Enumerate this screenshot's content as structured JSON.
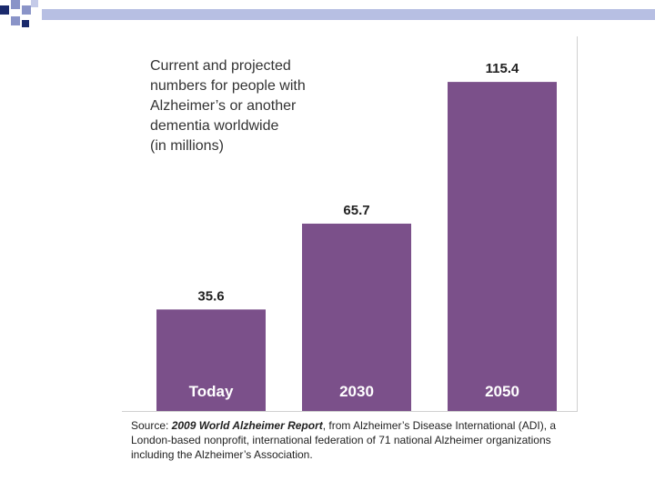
{
  "chart_data": {
    "type": "bar",
    "title": "Current and projected\nnumbers for people with\nAlzheimer’s or another\ndementia worldwide\n(in millions)",
    "categories": [
      "Today",
      "2030",
      "2050"
    ],
    "values": [
      35.6,
      65.7,
      115.4
    ],
    "value_labels": [
      "35.6",
      "65.7",
      "115.4"
    ],
    "ylim": [
      0,
      125
    ],
    "xlabel": "",
    "ylabel": "",
    "grid": false,
    "bar_color": "#7b508a",
    "category_label_color": "#ffffff",
    "value_label_color": "#222222"
  },
  "source": {
    "prefix": "Source: ",
    "report_title": "2009 World Alzheimer Report",
    "rest": ", from Alzheimer’s Disease International (ADI), a London-based nonprofit, international federation of 71 national Alzheimer organizations including the Alzheimer’s Association."
  },
  "theme": {
    "deco_dark": "#1a2a6c",
    "deco_light": "#8a94c8",
    "rule_color": "#b7bfe3"
  }
}
